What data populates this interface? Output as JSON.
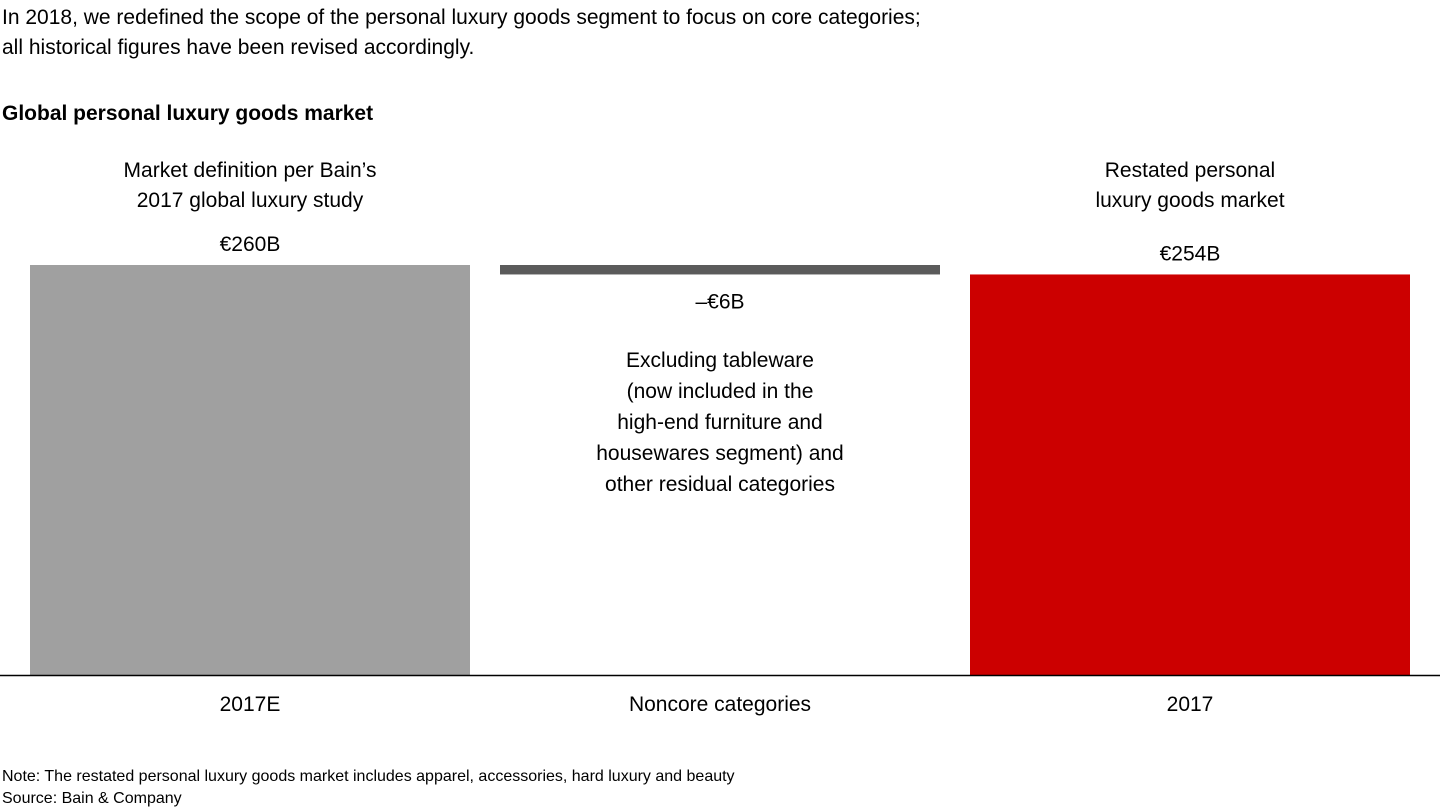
{
  "intro": {
    "line1": "In 2018, we redefined the scope of the personal luxury goods segment to focus on core categories;",
    "line2": "all historical figures have been revised accordingly."
  },
  "title": "Global personal luxury goods market",
  "top_labels": {
    "left": [
      "Market definition per Bain’s",
      "2017 global luxury study"
    ],
    "right": [
      "Restated personal",
      "luxury goods market"
    ]
  },
  "annotation": [
    "Excluding tableware",
    "(now included in the",
    "high-end furniture and",
    "housewares segment) and",
    "other residual categories"
  ],
  "footer": {
    "note": "Note: The restated personal luxury goods market includes apparel, accessories, hard luxury and beauty",
    "source": "Source: Bain & Company"
  },
  "chart_data": {
    "type": "bar",
    "subtype": "waterfall",
    "categories": [
      "2017E",
      "Noncore categories",
      "2017"
    ],
    "values": [
      260,
      -6,
      254
    ],
    "value_labels": [
      "€260B",
      "–€6B",
      "€254B"
    ],
    "ylim": [
      0,
      260
    ],
    "colors": [
      "#a0a0a0",
      "#5b5b5b",
      "#cc0000"
    ],
    "axis_color": "#000000",
    "grid": false
  }
}
